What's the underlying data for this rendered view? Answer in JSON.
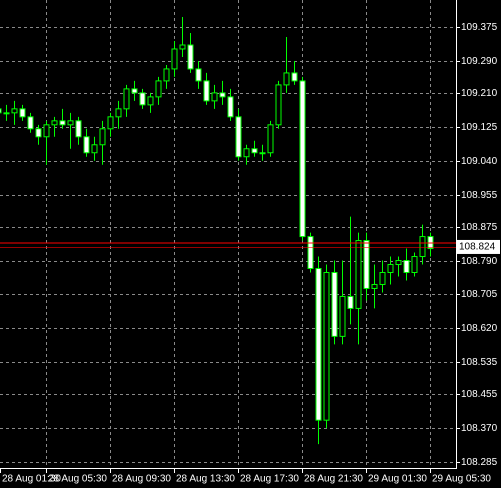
{
  "chart_data": {
    "type": "candlestick",
    "categories": [
      "28 Aug 01:30",
      null,
      null,
      null,
      null,
      null,
      "28 Aug 05:30",
      null,
      null,
      null,
      null,
      null,
      null,
      null,
      "28 Aug 09:30",
      null,
      null,
      null,
      null,
      null,
      null,
      null,
      "28 Aug 13:30",
      null,
      null,
      null,
      null,
      null,
      null,
      null,
      "28 Aug 17:30",
      null,
      null,
      null,
      null,
      null,
      null,
      null,
      "28 Aug 21:30",
      null,
      null,
      null,
      null,
      null,
      null,
      null,
      "29 Aug 01:30",
      null,
      null,
      null,
      null,
      null,
      null,
      null,
      "29 Aug 05:30"
    ],
    "open": [
      109.17,
      109.16,
      109.16,
      109.17,
      109.15,
      109.12,
      109.1,
      109.13,
      109.14,
      109.13,
      109.14,
      109.1,
      109.06,
      109.08,
      109.12,
      109.15,
      109.17,
      109.22,
      109.21,
      109.18,
      109.2,
      109.24,
      109.27,
      109.32,
      109.33,
      109.27,
      109.24,
      109.19,
      109.21,
      109.2,
      109.15,
      109.05,
      109.07,
      109.06,
      109.06,
      109.13,
      109.23,
      109.26,
      109.24,
      108.85,
      108.77,
      108.39,
      108.76,
      108.6,
      108.7,
      108.67,
      108.84,
      108.72,
      108.73,
      108.76,
      108.78,
      108.79,
      108.76,
      108.8,
      108.85
    ],
    "high": [
      109.19,
      109.18,
      109.19,
      109.18,
      109.16,
      109.13,
      109.14,
      109.15,
      109.17,
      109.16,
      109.15,
      109.12,
      109.1,
      109.14,
      109.16,
      109.19,
      109.23,
      109.24,
      109.22,
      109.21,
      109.25,
      109.28,
      109.34,
      109.4,
      109.36,
      109.29,
      109.26,
      109.23,
      109.24,
      109.22,
      109.17,
      109.08,
      109.09,
      109.08,
      109.14,
      109.24,
      109.35,
      109.29,
      109.25,
      108.86,
      108.8,
      108.78,
      108.79,
      108.79,
      108.9,
      108.86,
      108.86,
      108.78,
      108.79,
      108.8,
      108.8,
      108.82,
      108.81,
      108.88,
      108.86
    ],
    "low": [
      109.15,
      109.14,
      109.13,
      109.14,
      109.11,
      109.08,
      109.03,
      109.1,
      109.12,
      109.07,
      109.08,
      109.05,
      109.04,
      109.03,
      109.1,
      109.12,
      109.15,
      109.19,
      109.17,
      109.16,
      109.18,
      109.22,
      109.25,
      109.3,
      109.26,
      109.22,
      109.18,
      109.17,
      109.18,
      109.14,
      109.04,
      109.03,
      109.05,
      109.04,
      109.05,
      109.12,
      109.21,
      109.23,
      108.84,
      108.76,
      108.33,
      108.37,
      108.58,
      108.58,
      108.63,
      108.58,
      108.69,
      108.67,
      108.71,
      108.73,
      108.75,
      108.74,
      108.75,
      108.78,
      108.8
    ],
    "close": [
      109.16,
      109.16,
      109.17,
      109.15,
      109.12,
      109.1,
      109.13,
      109.14,
      109.13,
      109.14,
      109.1,
      109.06,
      109.08,
      109.12,
      109.15,
      109.17,
      109.22,
      109.21,
      109.18,
      109.2,
      109.24,
      109.27,
      109.32,
      109.33,
      109.27,
      109.24,
      109.19,
      109.21,
      109.2,
      109.15,
      109.05,
      109.07,
      109.06,
      109.06,
      109.13,
      109.23,
      109.26,
      109.24,
      108.85,
      108.77,
      108.39,
      108.76,
      108.6,
      108.7,
      108.67,
      108.84,
      108.72,
      108.73,
      108.76,
      108.78,
      108.79,
      108.76,
      108.8,
      108.85,
      108.82
    ],
    "up_color": "#000000",
    "down_color": "#ffffff",
    "outline_color": "#00ff00",
    "ylim": [
      108.2702,
      109.4427
    ],
    "yticks": [
      {
        "value": 108.285,
        "label": "108.285"
      },
      {
        "value": 108.37,
        "label": "108.370"
      },
      108.455,
      108.535,
      {
        "value": 108.62,
        "label": "108.620"
      },
      108.705,
      {
        "value": 108.79,
        "label": "108.790"
      },
      108.875,
      108.955,
      {
        "value": 109.04,
        "label": "109.040"
      },
      109.125,
      {
        "value": 109.21,
        "label": "109.210"
      },
      {
        "value": 109.29,
        "label": "109.290"
      },
      109.375
    ],
    "current_price": 108.824,
    "current_price_color": "#ff0000",
    "grid": true
  }
}
